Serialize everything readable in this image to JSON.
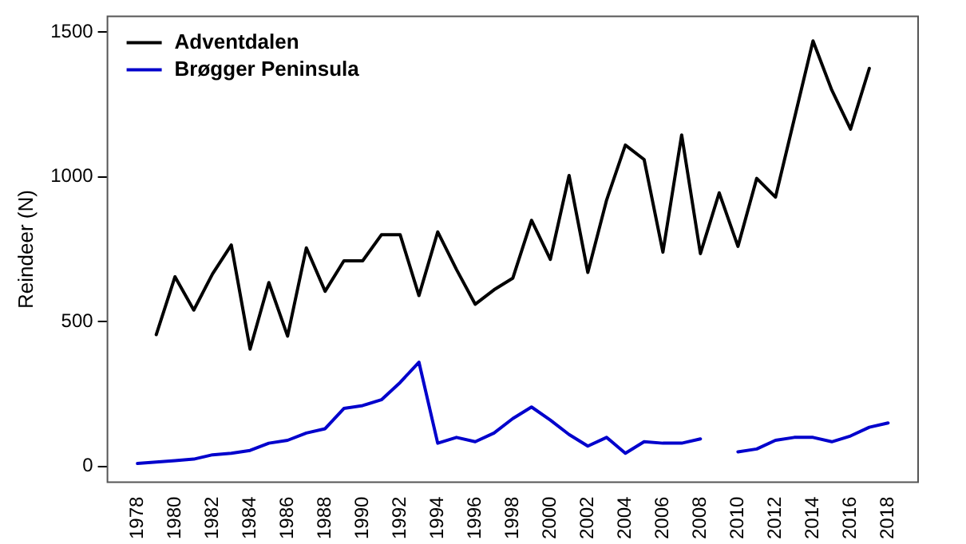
{
  "chart_data": {
    "type": "line",
    "ylabel": "Reindeer (N)",
    "x": [
      1978,
      1979,
      1980,
      1981,
      1982,
      1983,
      1984,
      1985,
      1986,
      1987,
      1988,
      1989,
      1990,
      1991,
      1992,
      1993,
      1994,
      1995,
      1996,
      1997,
      1998,
      1999,
      2000,
      2001,
      2002,
      2003,
      2004,
      2005,
      2006,
      2007,
      2008,
      2009,
      2010,
      2011,
      2012,
      2013,
      2014,
      2015,
      2016,
      2017,
      2018
    ],
    "series": [
      {
        "name": "Adventdalen",
        "color": "#000000",
        "values": [
          null,
          455,
          655,
          540,
          665,
          765,
          405,
          635,
          450,
          755,
          605,
          710,
          710,
          800,
          800,
          590,
          810,
          680,
          560,
          610,
          650,
          850,
          715,
          1005,
          670,
          920,
          1110,
          1060,
          740,
          1145,
          735,
          945,
          760,
          995,
          930,
          1200,
          1470,
          1300,
          1165,
          1375,
          null
        ]
      },
      {
        "name": "Brøgger Peninsula",
        "color": "#0000cc",
        "values": [
          10,
          15,
          20,
          25,
          40,
          45,
          55,
          80,
          90,
          115,
          130,
          200,
          210,
          230,
          290,
          360,
          80,
          100,
          85,
          115,
          165,
          205,
          160,
          110,
          70,
          100,
          45,
          85,
          80,
          80,
          95,
          null,
          50,
          60,
          90,
          100,
          100,
          85,
          105,
          135,
          150
        ]
      }
    ],
    "xlim": [
      1976.4,
      2019.6
    ],
    "xticks": [
      1978,
      1980,
      1982,
      1984,
      1986,
      1988,
      1990,
      1992,
      1994,
      1996,
      1998,
      2000,
      2002,
      2004,
      2006,
      2008,
      2010,
      2012,
      2014,
      2016,
      2018
    ],
    "ylim": [
      -55,
      1555
    ],
    "yticks": [
      0,
      500,
      1000,
      1500
    ],
    "grid": false,
    "legend": "top left",
    "marker": "none",
    "line_style": "solid"
  }
}
